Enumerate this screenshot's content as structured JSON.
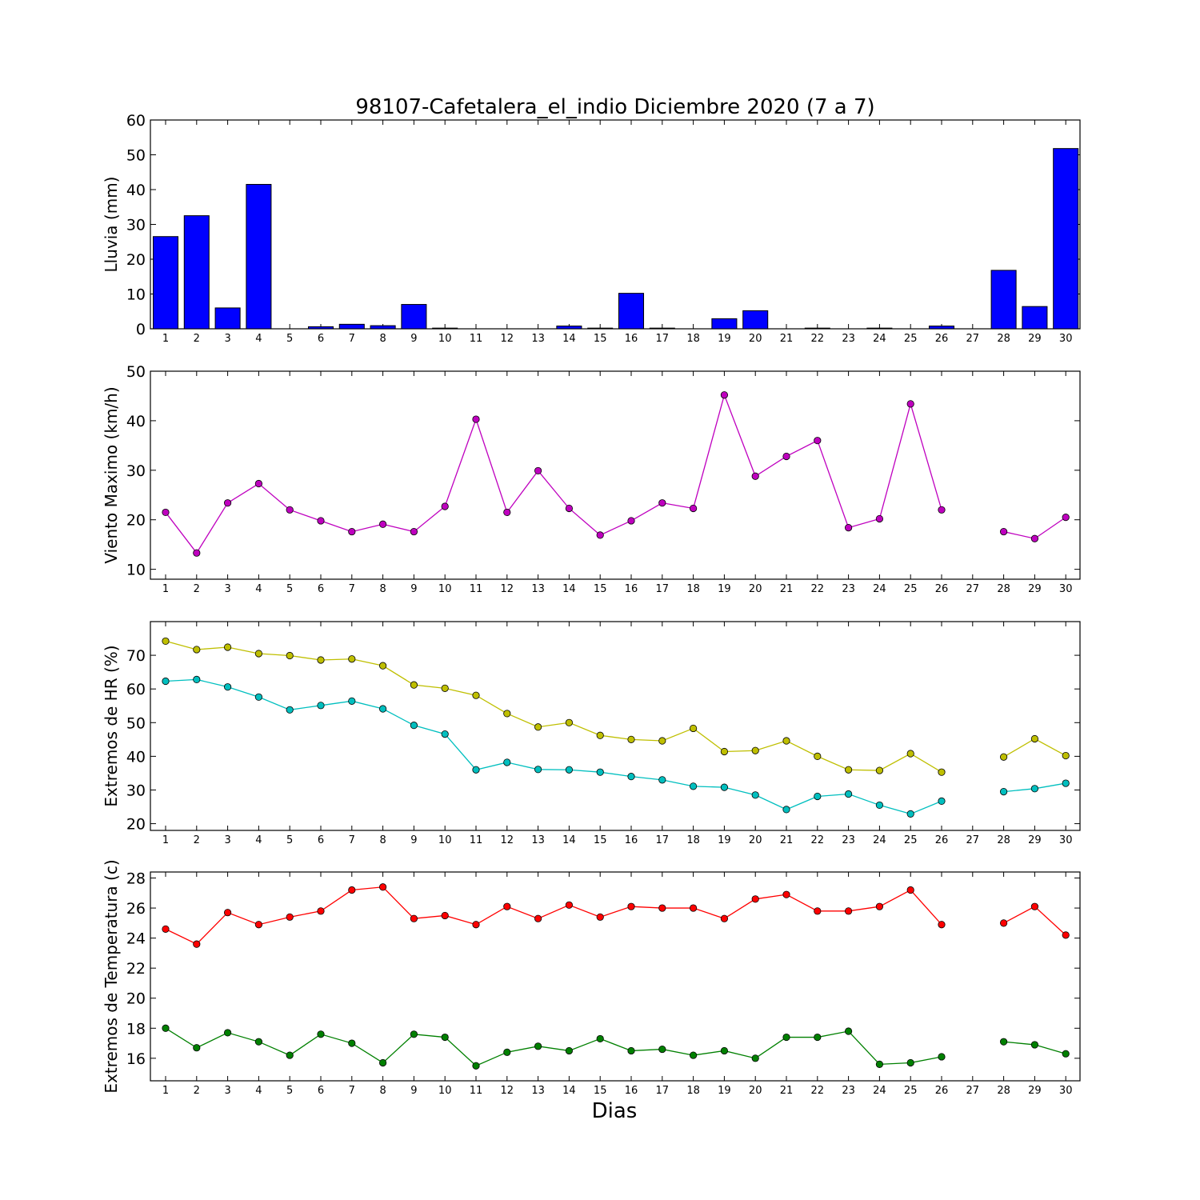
{
  "title": "98107-Cafetalera_el_indio Diciembre 2020  (7 a 7)",
  "xlabel": "Dias",
  "chart_data": [
    {
      "type": "bar",
      "ylabel": "Lluvia (mm)",
      "ylim": [
        0,
        60
      ],
      "yticks": [
        0,
        10,
        20,
        30,
        40,
        50,
        60
      ],
      "categories": [
        "1",
        "2",
        "3",
        "4",
        "5",
        "6",
        "7",
        "8",
        "9",
        "10",
        "11",
        "12",
        "13",
        "14",
        "15",
        "16",
        "17",
        "18",
        "19",
        "20",
        "21",
        "22",
        "23",
        "24",
        "25",
        "26",
        "27",
        "28",
        "29",
        "30"
      ],
      "color": "#0000ff",
      "values": [
        26.5,
        32.5,
        6.0,
        41.5,
        0,
        0.6,
        1.3,
        0.9,
        7.0,
        0.2,
        0,
        0,
        0,
        0.8,
        0.2,
        10.2,
        0.2,
        0,
        2.9,
        5.2,
        0,
        0.2,
        0,
        0.2,
        0,
        0.8,
        0,
        16.8,
        6.4,
        51.8
      ]
    },
    {
      "type": "line",
      "ylabel": "Viento Maximo (km/h)",
      "ylim": [
        8,
        50
      ],
      "yticks": [
        10,
        20,
        30,
        40,
        50
      ],
      "categories": [
        "1",
        "2",
        "3",
        "4",
        "5",
        "6",
        "7",
        "8",
        "9",
        "10",
        "11",
        "12",
        "13",
        "14",
        "15",
        "16",
        "17",
        "18",
        "19",
        "20",
        "21",
        "22",
        "23",
        "24",
        "25",
        "26",
        "27",
        "28",
        "29",
        "30"
      ],
      "series": [
        {
          "color": "#bf00bf",
          "values": [
            21.5,
            13.3,
            23.4,
            27.3,
            22.0,
            19.8,
            17.6,
            19.1,
            17.6,
            22.7,
            40.3,
            21.5,
            29.9,
            22.3,
            16.9,
            19.8,
            23.4,
            22.3,
            45.2,
            28.8,
            32.8,
            36.0,
            18.4,
            20.2,
            43.4,
            22.0,
            null,
            17.6,
            16.2,
            20.5
          ]
        }
      ]
    },
    {
      "type": "line",
      "ylabel": "Extremos de HR (%)",
      "ylim": [
        18,
        80
      ],
      "yticks": [
        20,
        30,
        40,
        50,
        60,
        70
      ],
      "categories": [
        "1",
        "2",
        "3",
        "4",
        "5",
        "6",
        "7",
        "8",
        "9",
        "10",
        "11",
        "12",
        "13",
        "14",
        "15",
        "16",
        "17",
        "18",
        "19",
        "20",
        "21",
        "22",
        "23",
        "24",
        "25",
        "26",
        "27",
        "28",
        "29",
        "30"
      ],
      "series": [
        {
          "color": "#bfbf00",
          "values": [
            74.2,
            71.7,
            72.4,
            70.5,
            69.9,
            68.6,
            68.9,
            66.9,
            61.2,
            60.2,
            58.1,
            52.7,
            48.7,
            50.0,
            46.2,
            45.0,
            44.6,
            48.3,
            41.4,
            41.7,
            44.6,
            40.0,
            36.0,
            35.8,
            40.8,
            35.3,
            null,
            39.8,
            45.2,
            40.2
          ]
        },
        {
          "color": "#00bfbf",
          "values": [
            62.3,
            62.8,
            60.6,
            57.6,
            53.8,
            55.1,
            56.4,
            54.1,
            49.2,
            46.6,
            36.0,
            38.2,
            36.1,
            36.0,
            35.3,
            34.0,
            33.0,
            31.1,
            30.8,
            28.5,
            24.2,
            28.1,
            28.8,
            25.5,
            22.9,
            26.7,
            null,
            29.5,
            30.4,
            32.0
          ]
        }
      ]
    },
    {
      "type": "line",
      "ylabel": "Extremos de Temperatura (c)",
      "ylim": [
        14.5,
        28.4
      ],
      "yticks": [
        16,
        18,
        20,
        22,
        24,
        26,
        28
      ],
      "categories": [
        "1",
        "2",
        "3",
        "4",
        "5",
        "6",
        "7",
        "8",
        "9",
        "10",
        "11",
        "12",
        "13",
        "14",
        "15",
        "16",
        "17",
        "18",
        "19",
        "20",
        "21",
        "22",
        "23",
        "24",
        "25",
        "26",
        "27",
        "28",
        "29",
        "30"
      ],
      "series": [
        {
          "color": "#ff0000",
          "values": [
            24.6,
            23.6,
            25.7,
            24.9,
            25.4,
            25.8,
            27.2,
            27.4,
            25.3,
            25.5,
            24.9,
            26.1,
            25.3,
            26.2,
            25.4,
            26.1,
            26.0,
            26.0,
            25.3,
            26.6,
            26.9,
            25.8,
            25.8,
            26.1,
            27.2,
            24.9,
            null,
            25.0,
            26.1,
            24.2
          ]
        },
        {
          "color": "#008000",
          "values": [
            18.0,
            16.7,
            17.7,
            17.1,
            16.2,
            17.6,
            17.0,
            15.7,
            17.6,
            17.4,
            15.5,
            16.4,
            16.8,
            16.5,
            17.3,
            16.5,
            16.6,
            16.2,
            16.5,
            16.0,
            17.4,
            17.4,
            17.8,
            15.6,
            15.7,
            16.1,
            null,
            17.1,
            16.9,
            16.3
          ]
        }
      ]
    }
  ]
}
